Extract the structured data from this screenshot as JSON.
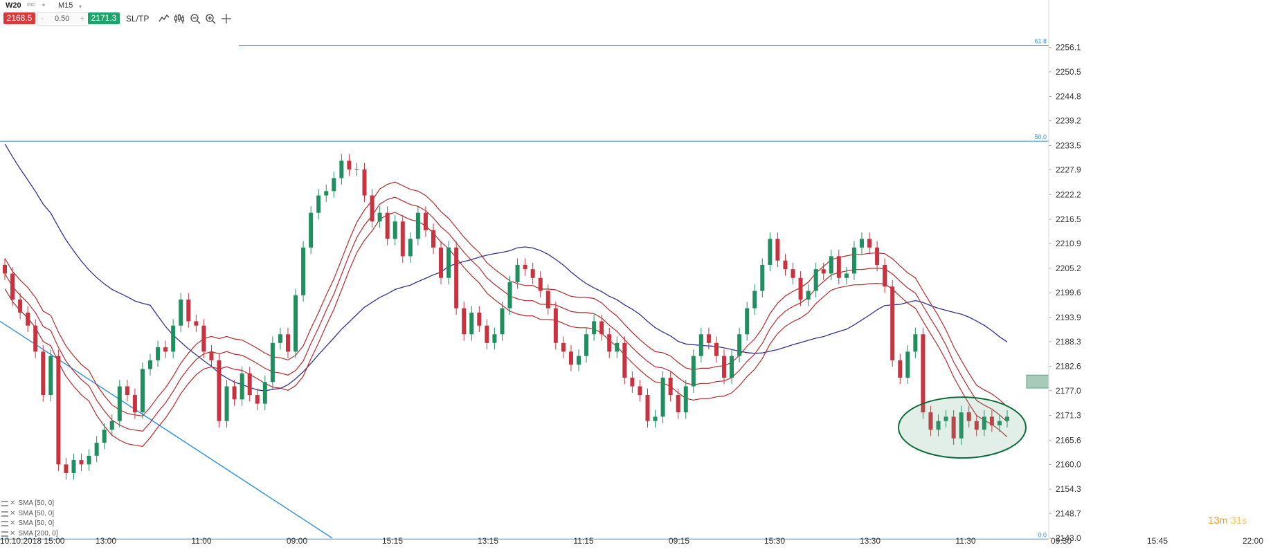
{
  "symbol": "W20",
  "symbol_tag": "IND",
  "timeframe": "M15",
  "sell_price": "2168.5",
  "spread": "0.50",
  "buy_price": "2171.3",
  "sltp_label": "SL/TP",
  "qty_minus": "-",
  "qty_plus": "+",
  "timer": {
    "minutes": "13",
    "min_unit": "m",
    "seconds": "31",
    "sec_unit": "s"
  },
  "legend": [
    "SMA [50, 0]",
    "SMA [50, 0]",
    "SMA [50, 0]",
    "SMA [200, 0]"
  ],
  "colors": {
    "bull": "#1f8f5f",
    "bear": "#c8333f",
    "envelope": "#b32a2a",
    "sma200": "#2e3192",
    "fib": "#2a8fe0",
    "trendline": "#2a8fe0",
    "zone": "#5f9e80",
    "ellipse": "#0e6b3a"
  },
  "chart_data": {
    "type": "candlestick",
    "ylim": [
      2143.0,
      2261.0
    ],
    "y_ticks": [
      "2256.1",
      "2250.5",
      "2244.8",
      "2239.2",
      "2233.5",
      "2227.9",
      "2222.2",
      "2216.5",
      "2210.9",
      "2205.2",
      "2199.6",
      "2193.9",
      "2188.3",
      "2182.6",
      "2177.0",
      "2171.3",
      "2165.6",
      "2160.0",
      "2154.3",
      "2148.7",
      "2143.0"
    ],
    "x_labels": [
      "10.10.2018 15:00",
      "13:00",
      "11:00",
      "09:00",
      "15:15",
      "13:15",
      "11:15",
      "09:15",
      "15:30",
      "13:30",
      "11:30",
      "09:30",
      "15:45",
      "22:00"
    ],
    "fib_levels": [
      {
        "label": "61.8",
        "price": 2256.6
      },
      {
        "label": "50.0",
        "price": 2234.5
      },
      {
        "label": "0.0",
        "price": 2142.8
      }
    ],
    "close": [
      2204,
      2198,
      2195,
      2192,
      2186,
      2176,
      2185,
      2160,
      2158,
      2161,
      2160,
      2162,
      2165,
      2168,
      2170,
      2178,
      2176,
      2172,
      2182,
      2184,
      2187,
      2186,
      2192,
      2198,
      2193,
      2192,
      2186,
      2184,
      2170,
      2178,
      2175,
      2181,
      2176,
      2174,
      2179,
      2188,
      2190,
      2186,
      2199,
      2210,
      2218,
      2222,
      2223,
      2226,
      2230,
      2228,
      2228,
      2222,
      2216,
      2218,
      2212,
      2216,
      2208,
      2212,
      2218,
      2214,
      2210,
      2203,
      2210,
      2196,
      2190,
      2195,
      2192,
      2188,
      2190,
      2196,
      2202,
      2206,
      2205,
      2203,
      2200,
      2196,
      2188,
      2186,
      2183,
      2185,
      2190,
      2193,
      2190,
      2186,
      2188,
      2180,
      2178,
      2176,
      2170,
      2171,
      2180,
      2176,
      2172,
      2178,
      2185,
      2190,
      2188,
      2185,
      2180,
      2185,
      2190,
      2196,
      2200,
      2206,
      2212,
      2207,
      2205,
      2203,
      2198,
      2200,
      2205,
      2204,
      2208,
      2203,
      2204,
      2210,
      2212,
      2210,
      2206,
      2201,
      2184,
      2180,
      2186,
      2190,
      2172,
      2168,
      2170,
      2171,
      2166,
      2172,
      2170,
      2168,
      2171,
      2169,
      2170,
      2171
    ]
  }
}
